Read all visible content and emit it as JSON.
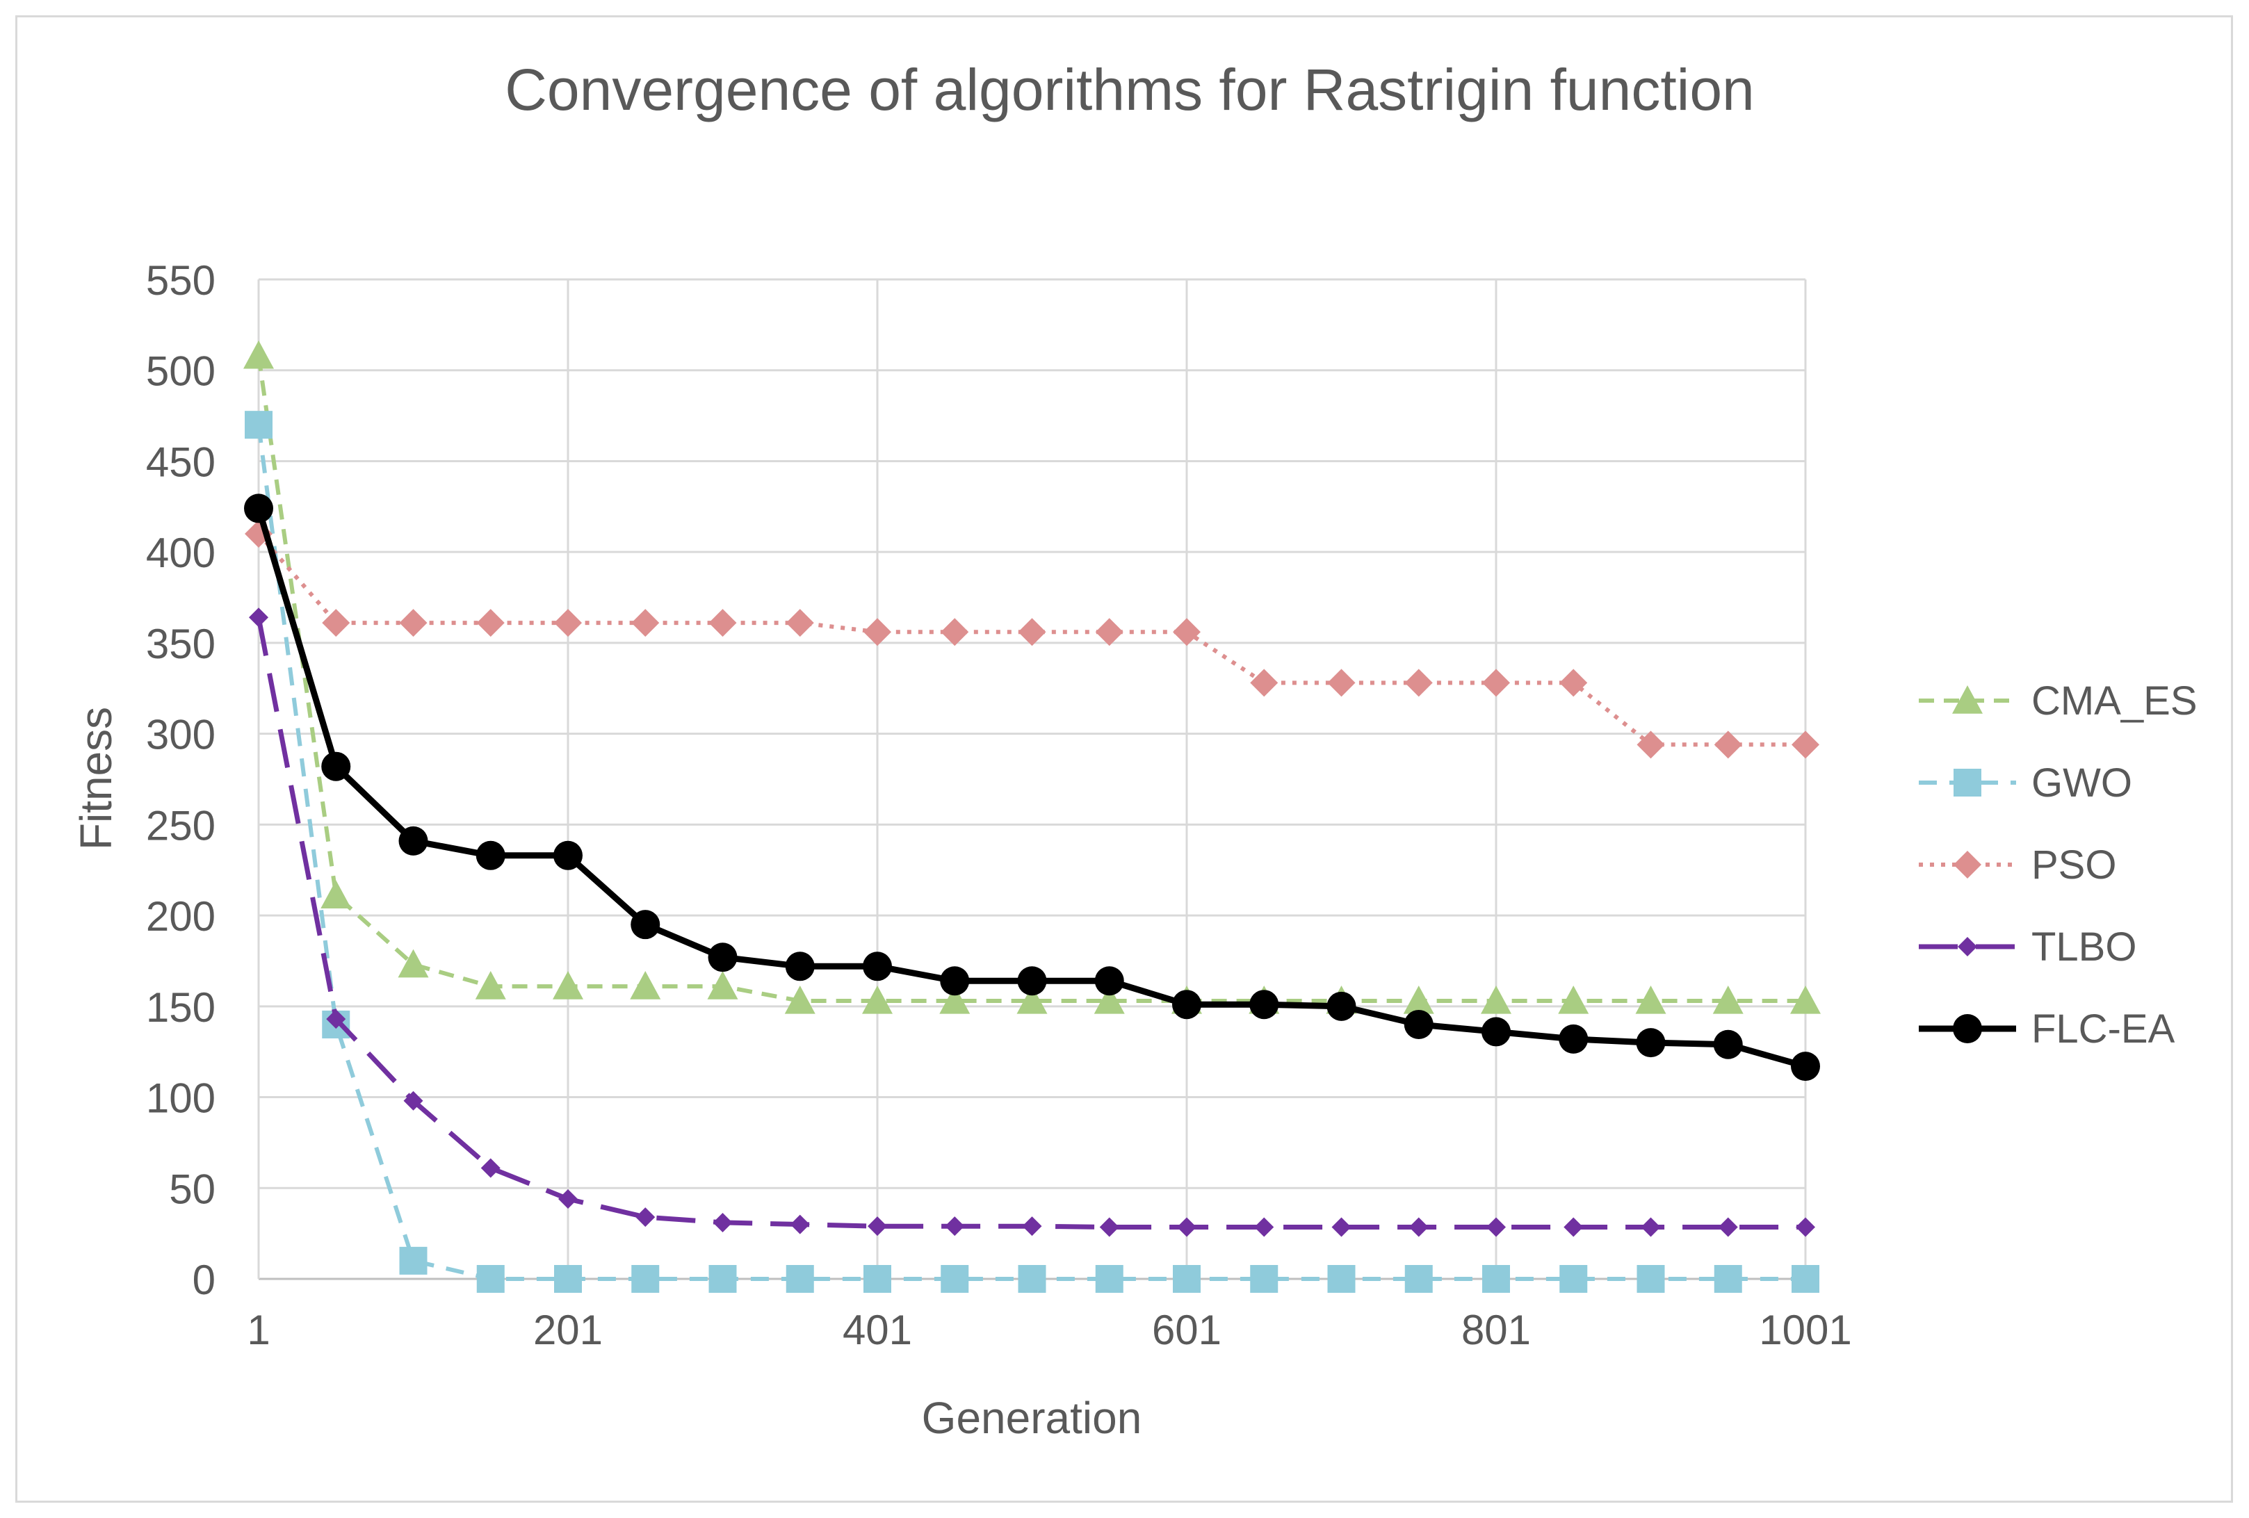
{
  "chart_data": {
    "type": "line",
    "title": "Convergence of algorithms for Rastrigin function",
    "xlabel": "Generation",
    "ylabel": "Fitness",
    "xlim": [
      1,
      1001
    ],
    "ylim": [
      0,
      550
    ],
    "x_ticks": [
      1,
      201,
      401,
      601,
      801,
      1001
    ],
    "y_ticks": [
      0,
      50,
      100,
      150,
      200,
      250,
      300,
      350,
      400,
      450,
      500,
      550
    ],
    "grid": true,
    "legend_position": "right",
    "x": [
      1,
      51,
      101,
      151,
      201,
      251,
      301,
      351,
      401,
      451,
      501,
      551,
      601,
      651,
      701,
      751,
      801,
      851,
      901,
      951,
      1001
    ],
    "series": [
      {
        "name": "CMA_ES",
        "color": "#a9cd82",
        "dash": "dashed",
        "marker": "triangle",
        "values": [
          508,
          211,
          173,
          161,
          161,
          161,
          161,
          153,
          153,
          153,
          153,
          153,
          153,
          153,
          153,
          153,
          153,
          153,
          153,
          153,
          153
        ]
      },
      {
        "name": "GWO",
        "color": "#8fcbdb",
        "dash": "long-dashed",
        "marker": "square",
        "values": [
          470,
          140,
          10,
          0,
          0,
          0,
          0,
          0,
          0,
          0,
          0,
          0,
          0,
          0,
          0,
          0,
          0,
          0,
          0,
          0,
          0
        ]
      },
      {
        "name": "PSO",
        "color": "#dd8f8f",
        "dash": "dotted",
        "marker": "diamond",
        "values": [
          410,
          361,
          361,
          361,
          361,
          361,
          361,
          361,
          356,
          356,
          356,
          356,
          356,
          328,
          328,
          328,
          328,
          328,
          294,
          294,
          294
        ]
      },
      {
        "name": "TLBO",
        "color": "#7030a0",
        "dash": "long-dash",
        "marker": "diamond-small",
        "values": [
          364,
          143,
          98,
          61,
          44,
          34,
          31,
          30,
          29,
          29,
          29,
          28.5,
          28.5,
          28.5,
          28.5,
          28.5,
          28.5,
          28.5,
          28.5,
          28.5,
          28.5
        ]
      },
      {
        "name": "FLC-EA",
        "color": "#000000",
        "dash": "solid",
        "marker": "circle",
        "values": [
          424,
          282,
          241,
          233,
          233,
          195,
          177,
          172,
          172,
          164,
          164,
          164,
          151,
          151,
          150,
          140,
          136,
          132,
          130,
          129,
          117
        ]
      }
    ]
  }
}
